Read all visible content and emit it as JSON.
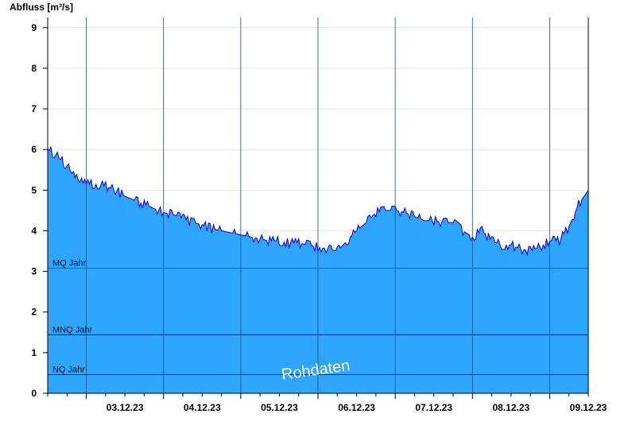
{
  "chart_data": {
    "type": "area",
    "ylabel": "Abfluss [m³/s]",
    "ylim": [
      0,
      9.25
    ],
    "yticks": [
      0,
      1,
      2,
      3,
      4,
      5,
      6,
      7,
      8,
      9
    ],
    "xlim": [
      "2023-12-02T12:00",
      "2023-12-09T12:00"
    ],
    "day_labels": [
      "03.12.23",
      "04.12.23",
      "05.12.23",
      "06.12.23",
      "07.12.23",
      "08.12.23",
      "09.12.23"
    ],
    "grid": true,
    "colors": {
      "fill": "#2ea6ff",
      "line": "#0000cc",
      "mq_line": "#1f6b2e",
      "ref_line": "#000000",
      "grid": "#e6e6e6"
    },
    "reference_lines": [
      {
        "label": "MQ Jahr",
        "value": 3.08
      },
      {
        "label": "MNQ Jahr",
        "value": 1.44
      },
      {
        "label": "NQ Jahr",
        "value": 0.46
      }
    ],
    "watermark": "Rohdaten",
    "series": [
      {
        "x": [
          "2023-12-02T12:00",
          "2023-12-02T14:00",
          "2023-12-02T16:00",
          "2023-12-02T18:00",
          "2023-12-02T20:00",
          "2023-12-02T22:00",
          "2023-12-03T00:00",
          "2023-12-03T03:00",
          "2023-12-03T06:00",
          "2023-12-03T09:00",
          "2023-12-03T12:00",
          "2023-12-03T15:00",
          "2023-12-03T18:00",
          "2023-12-03T21:00",
          "2023-12-04T00:00",
          "2023-12-04T03:00",
          "2023-12-04T06:00",
          "2023-12-04T09:00",
          "2023-12-04T12:00",
          "2023-12-04T15:00",
          "2023-12-04T18:00",
          "2023-12-04T21:00",
          "2023-12-05T00:00",
          "2023-12-05T03:00",
          "2023-12-05T06:00",
          "2023-12-05T09:00",
          "2023-12-05T12:00",
          "2023-12-05T15:00",
          "2023-12-05T18:00",
          "2023-12-05T21:00",
          "2023-12-06T00:00",
          "2023-12-06T03:00",
          "2023-12-06T06:00",
          "2023-12-06T09:00",
          "2023-12-06T12:00",
          "2023-12-06T15:00",
          "2023-12-06T18:00",
          "2023-12-06T21:00",
          "2023-12-07T00:00",
          "2023-12-07T03:00",
          "2023-12-07T06:00",
          "2023-12-07T09:00",
          "2023-12-07T12:00",
          "2023-12-07T15:00",
          "2023-12-07T18:00",
          "2023-12-07T21:00",
          "2023-12-08T00:00",
          "2023-12-08T03:00",
          "2023-12-08T06:00",
          "2023-12-08T09:00",
          "2023-12-08T12:00",
          "2023-12-08T15:00",
          "2023-12-08T18:00",
          "2023-12-08T21:00",
          "2023-12-09T00:00",
          "2023-12-09T03:00",
          "2023-12-09T06:00",
          "2023-12-09T09:00",
          "2023-12-09T12:00"
        ],
        "values": [
          6.0,
          5.9,
          5.75,
          5.6,
          5.35,
          5.2,
          5.15,
          5.15,
          5.1,
          5.0,
          4.85,
          4.75,
          4.65,
          4.55,
          4.45,
          4.4,
          4.3,
          4.2,
          4.15,
          4.05,
          4.0,
          3.95,
          3.9,
          3.85,
          3.8,
          3.75,
          3.75,
          3.7,
          3.7,
          3.65,
          3.6,
          3.55,
          3.5,
          3.75,
          4.0,
          4.2,
          4.45,
          4.5,
          4.5,
          4.45,
          4.35,
          4.25,
          4.25,
          4.2,
          4.2,
          4.0,
          3.85,
          4.0,
          3.75,
          3.65,
          3.65,
          3.55,
          3.5,
          3.6,
          3.75,
          3.75,
          4.1,
          4.65,
          5.0
        ]
      }
    ]
  }
}
